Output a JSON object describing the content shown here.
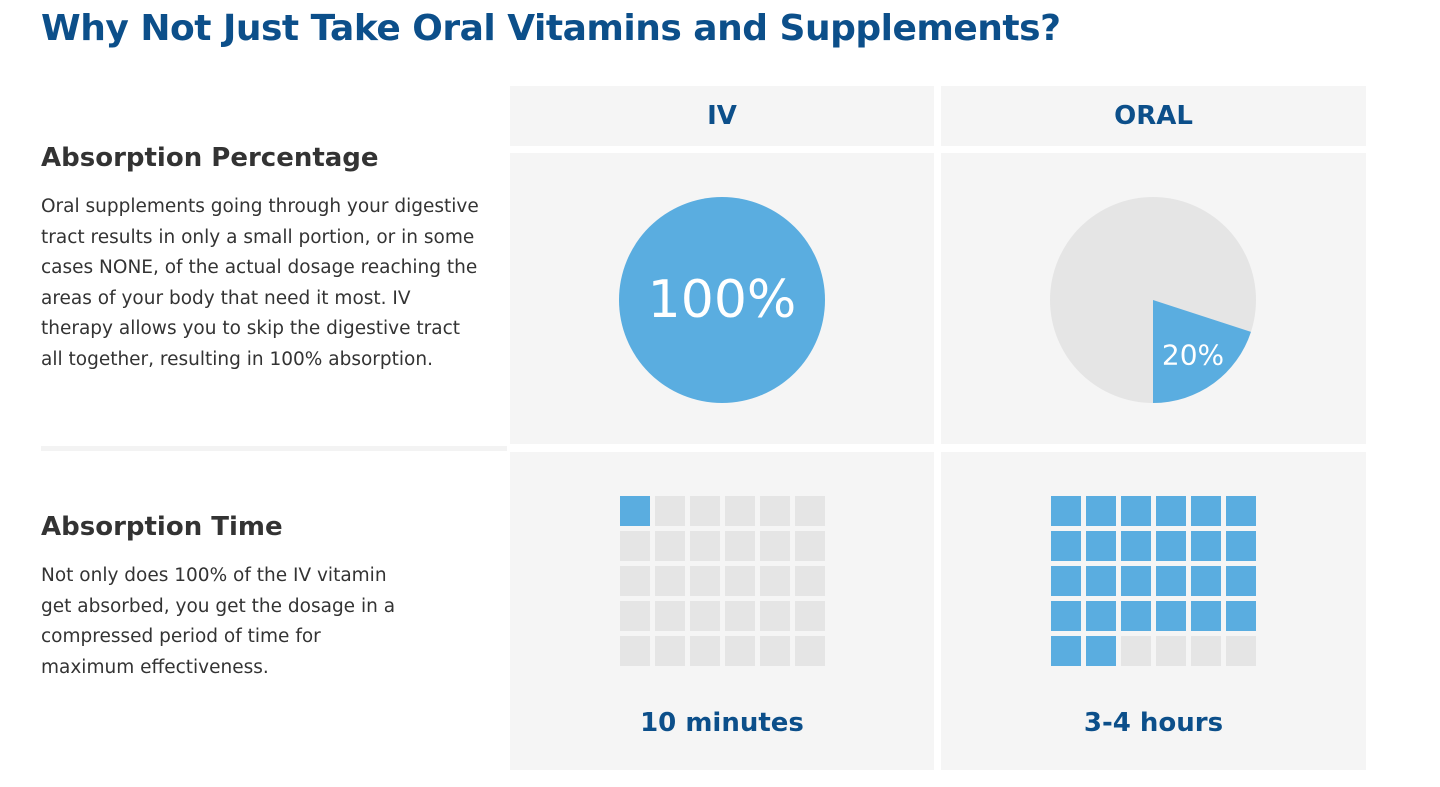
{
  "title": "Why Not Just Take Oral Vitamins and Supplements?",
  "columns": [
    "IV",
    "ORAL"
  ],
  "rows": [
    {
      "title": "Absorption Percentage",
      "description": "Oral supplements going through your digestive tract results in only a small portion, or in some cases NONE, of the actual dosage reaching the areas of your body that need it most. IV therapy allows you to skip the digestive tract all together, resulting in 100% absorption."
    },
    {
      "title": "Absorption Time",
      "description": "Not only does 100% of the IV vitamin get absorbed, you get the dosage in a compressed period of time for maximum effectiveness."
    }
  ],
  "colors": {
    "accent": "#5aade0",
    "empty": "#e5e5e5",
    "heading": "#0c4f8a",
    "panel": "#f5f5f5"
  },
  "chart_data": [
    {
      "type": "pie",
      "series": [
        {
          "name": "IV",
          "values": [
            100
          ],
          "label": "100%"
        },
        {
          "name": "ORAL",
          "values": [
            20
          ],
          "label": "20%"
        }
      ]
    },
    {
      "type": "heatmap",
      "grid": {
        "rows": 5,
        "cols": 6
      },
      "series": [
        {
          "name": "IV",
          "filled_squares": 1,
          "label": "10 minutes"
        },
        {
          "name": "ORAL",
          "filled_squares": 26,
          "label": "3-4 hours"
        }
      ]
    }
  ]
}
